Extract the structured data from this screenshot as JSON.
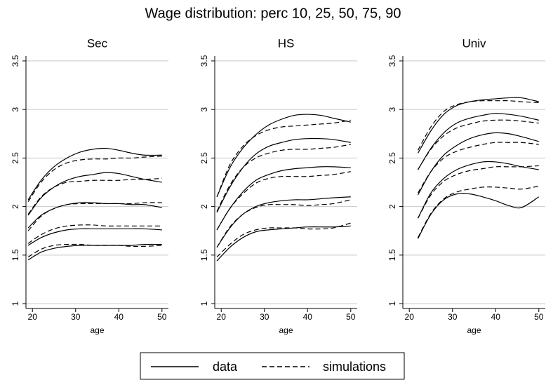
{
  "title": "Wage distribution: perc 10, 25, 50, 75, 90",
  "legend": [
    {
      "label": "data",
      "dash": "solid"
    },
    {
      "label": "simulations",
      "dash": "dashed"
    }
  ],
  "chart_data": [
    {
      "type": "line",
      "title": "Sec",
      "x_label": "age",
      "color": "#000000",
      "grid": true,
      "xlim": [
        18.5,
        51.5
      ],
      "xticks": [
        20,
        30,
        40,
        50
      ],
      "ylim": [
        0.95,
        3.55
      ],
      "yticks": [
        1,
        1.5,
        2,
        2.5,
        3,
        3.5
      ],
      "x": [
        19,
        22,
        25,
        28,
        31,
        34,
        37,
        40,
        43,
        46,
        50
      ],
      "series": [
        {
          "dash": "solid",
          "values": [
            2.07,
            2.27,
            2.41,
            2.5,
            2.56,
            2.59,
            2.6,
            2.58,
            2.55,
            2.53,
            2.53
          ]
        },
        {
          "dash": "dashed",
          "values": [
            2.05,
            2.25,
            2.38,
            2.45,
            2.48,
            2.49,
            2.49,
            2.5,
            2.5,
            2.51,
            2.52
          ]
        },
        {
          "dash": "solid",
          "values": [
            1.91,
            2.09,
            2.2,
            2.27,
            2.31,
            2.33,
            2.35,
            2.34,
            2.31,
            2.28,
            2.25
          ]
        },
        {
          "dash": "dashed",
          "values": [
            1.92,
            2.1,
            2.2,
            2.25,
            2.26,
            2.27,
            2.27,
            2.27,
            2.28,
            2.28,
            2.29
          ]
        },
        {
          "dash": "solid",
          "values": [
            1.78,
            1.91,
            1.98,
            2.02,
            2.04,
            2.04,
            2.03,
            2.03,
            2.02,
            2.02,
            1.99
          ]
        },
        {
          "dash": "dashed",
          "values": [
            1.75,
            1.9,
            1.98,
            2.02,
            2.03,
            2.03,
            2.03,
            2.03,
            2.03,
            2.04,
            2.04
          ]
        },
        {
          "dash": "solid",
          "values": [
            1.6,
            1.68,
            1.73,
            1.76,
            1.77,
            1.77,
            1.77,
            1.77,
            1.77,
            1.77,
            1.76
          ]
        },
        {
          "dash": "dashed",
          "values": [
            1.62,
            1.71,
            1.77,
            1.8,
            1.81,
            1.81,
            1.8,
            1.8,
            1.8,
            1.8,
            1.8
          ]
        },
        {
          "dash": "solid",
          "values": [
            1.45,
            1.53,
            1.57,
            1.59,
            1.6,
            1.6,
            1.6,
            1.6,
            1.6,
            1.61,
            1.61
          ]
        },
        {
          "dash": "dashed",
          "values": [
            1.48,
            1.56,
            1.6,
            1.61,
            1.61,
            1.6,
            1.6,
            1.6,
            1.59,
            1.59,
            1.6
          ]
        }
      ]
    },
    {
      "type": "line",
      "title": "HS",
      "x_label": "age",
      "color": "#000000",
      "grid": true,
      "xlim": [
        18.5,
        51.5
      ],
      "xticks": [
        20,
        30,
        40,
        50
      ],
      "ylim": [
        0.95,
        3.55
      ],
      "yticks": [
        1,
        1.5,
        2,
        2.5,
        3,
        3.5
      ],
      "x": [
        19,
        22,
        25,
        28,
        31,
        34,
        37,
        40,
        43,
        46,
        50
      ],
      "series": [
        {
          "dash": "solid",
          "values": [
            2.1,
            2.4,
            2.6,
            2.74,
            2.84,
            2.9,
            2.94,
            2.95,
            2.94,
            2.91,
            2.87
          ]
        },
        {
          "dash": "dashed",
          "values": [
            2.1,
            2.43,
            2.62,
            2.73,
            2.79,
            2.82,
            2.83,
            2.84,
            2.85,
            2.86,
            2.89
          ]
        },
        {
          "dash": "solid",
          "values": [
            1.94,
            2.2,
            2.4,
            2.54,
            2.62,
            2.66,
            2.69,
            2.7,
            2.7,
            2.69,
            2.66
          ]
        },
        {
          "dash": "dashed",
          "values": [
            1.95,
            2.22,
            2.4,
            2.5,
            2.55,
            2.58,
            2.59,
            2.59,
            2.6,
            2.61,
            2.64
          ]
        },
        {
          "dash": "solid",
          "values": [
            1.76,
            1.98,
            2.15,
            2.27,
            2.33,
            2.37,
            2.39,
            2.4,
            2.41,
            2.41,
            2.4
          ]
        },
        {
          "dash": "dashed",
          "values": [
            1.76,
            1.98,
            2.13,
            2.24,
            2.29,
            2.31,
            2.31,
            2.31,
            2.32,
            2.33,
            2.36
          ]
        },
        {
          "dash": "solid",
          "values": [
            1.58,
            1.78,
            1.92,
            2.0,
            2.04,
            2.06,
            2.07,
            2.07,
            2.08,
            2.09,
            2.1
          ]
        },
        {
          "dash": "dashed",
          "values": [
            1.58,
            1.79,
            1.92,
            1.99,
            2.02,
            2.02,
            2.02,
            2.01,
            2.02,
            2.03,
            2.07
          ]
        },
        {
          "dash": "solid",
          "values": [
            1.44,
            1.58,
            1.68,
            1.74,
            1.76,
            1.77,
            1.78,
            1.79,
            1.79,
            1.79,
            1.8
          ]
        },
        {
          "dash": "dashed",
          "values": [
            1.48,
            1.61,
            1.71,
            1.76,
            1.78,
            1.78,
            1.78,
            1.77,
            1.77,
            1.78,
            1.83
          ]
        }
      ]
    },
    {
      "type": "line",
      "title": "Univ",
      "x_label": "age",
      "color": "#000000",
      "grid": true,
      "xlim": [
        18.5,
        51.5
      ],
      "xticks": [
        20,
        30,
        40,
        50
      ],
      "ylim": [
        0.95,
        3.55
      ],
      "yticks": [
        1,
        1.5,
        2,
        2.5,
        3,
        3.5
      ],
      "x": [
        22,
        25,
        28,
        31,
        34,
        37,
        40,
        43,
        46,
        50
      ],
      "series": [
        {
          "dash": "solid",
          "values": [
            2.55,
            2.78,
            2.95,
            3.04,
            3.08,
            3.1,
            3.11,
            3.12,
            3.12,
            3.08
          ]
        },
        {
          "dash": "dashed",
          "values": [
            2.58,
            2.82,
            2.98,
            3.05,
            3.08,
            3.09,
            3.09,
            3.09,
            3.08,
            3.07
          ]
        },
        {
          "dash": "solid",
          "values": [
            2.38,
            2.6,
            2.76,
            2.86,
            2.91,
            2.94,
            2.96,
            2.95,
            2.93,
            2.89
          ]
        },
        {
          "dash": "dashed",
          "values": [
            2.38,
            2.59,
            2.73,
            2.81,
            2.85,
            2.88,
            2.89,
            2.89,
            2.88,
            2.86
          ]
        },
        {
          "dash": "solid",
          "values": [
            2.12,
            2.36,
            2.53,
            2.63,
            2.7,
            2.74,
            2.76,
            2.75,
            2.72,
            2.67
          ]
        },
        {
          "dash": "dashed",
          "values": [
            2.14,
            2.36,
            2.5,
            2.57,
            2.61,
            2.64,
            2.66,
            2.66,
            2.66,
            2.64
          ]
        },
        {
          "dash": "solid",
          "values": [
            1.88,
            2.14,
            2.29,
            2.38,
            2.43,
            2.46,
            2.46,
            2.44,
            2.41,
            2.38
          ]
        },
        {
          "dash": "dashed",
          "values": [
            1.88,
            2.12,
            2.26,
            2.33,
            2.37,
            2.39,
            2.41,
            2.41,
            2.41,
            2.42
          ]
        },
        {
          "dash": "solid",
          "values": [
            1.67,
            1.92,
            2.07,
            2.13,
            2.13,
            2.1,
            2.06,
            2.01,
            1.99,
            2.1
          ]
        },
        {
          "dash": "dashed",
          "values": [
            1.68,
            1.93,
            2.08,
            2.15,
            2.18,
            2.2,
            2.2,
            2.19,
            2.18,
            2.21
          ]
        }
      ]
    }
  ]
}
